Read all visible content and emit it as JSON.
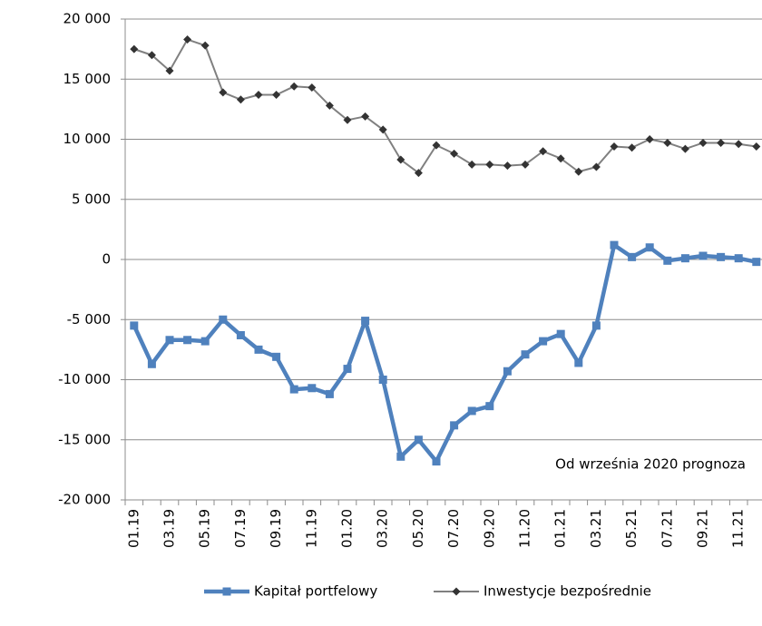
{
  "chart_data": {
    "type": "line",
    "annotation": "Od września 2020 prognoza",
    "categories": [
      "01.19",
      null,
      "03.19",
      null,
      "05.19",
      null,
      "07.19",
      null,
      "09.19",
      null,
      "11.19",
      null,
      "01.20",
      null,
      "03.20",
      null,
      "05.20",
      null,
      "07.20",
      null,
      "09.20",
      null,
      "11.20",
      null,
      "01.21",
      null,
      "03.21",
      null,
      "05.21",
      null,
      "07.21",
      null,
      "09.21",
      null,
      "11.21",
      null
    ],
    "series": [
      {
        "name": "Kapitał portfelowy",
        "color": "#4f81bd",
        "marker": "square",
        "values": [
          -5500,
          -8700,
          -6700,
          -6700,
          -6800,
          -5000,
          -6300,
          -7500,
          -8100,
          -10800,
          -10700,
          -11200,
          -9100,
          -5100,
          -10000,
          -16400,
          -15000,
          -16800,
          -13800,
          -12600,
          -12200,
          -9300,
          -7900,
          -6800,
          -6200,
          -8600,
          -5500,
          1200,
          200,
          1000,
          -100,
          100,
          300,
          200,
          100,
          -200
        ]
      },
      {
        "name": "Inwestycje bezpośrednie",
        "color": "#808080",
        "marker": "diamond",
        "values": [
          17500,
          17000,
          15700,
          18300,
          17800,
          13900,
          13300,
          13700,
          13700,
          14400,
          14300,
          12800,
          11600,
          11900,
          10800,
          8300,
          7200,
          9500,
          8800,
          7900,
          7900,
          7800,
          7900,
          9000,
          8400,
          7300,
          7700,
          9400,
          9300,
          10000,
          9700,
          9200,
          9700,
          9700,
          9600,
          9400
        ]
      }
    ],
    "ylim": [
      -20000,
      20000
    ],
    "yticks": [
      {
        "value": -20000,
        "label": "-20 000"
      },
      {
        "value": -15000,
        "label": "-15 000"
      },
      {
        "value": -10000,
        "label": "-10 000"
      },
      {
        "value": -5000,
        "label": "-5 000"
      },
      0,
      {
        "value": 5000,
        "label": "5 000"
      },
      {
        "value": 10000,
        "label": "10 000"
      },
      {
        "value": 15000,
        "label": "15 000"
      },
      {
        "value": 20000,
        "label": "20 000"
      }
    ],
    "grid": true
  }
}
